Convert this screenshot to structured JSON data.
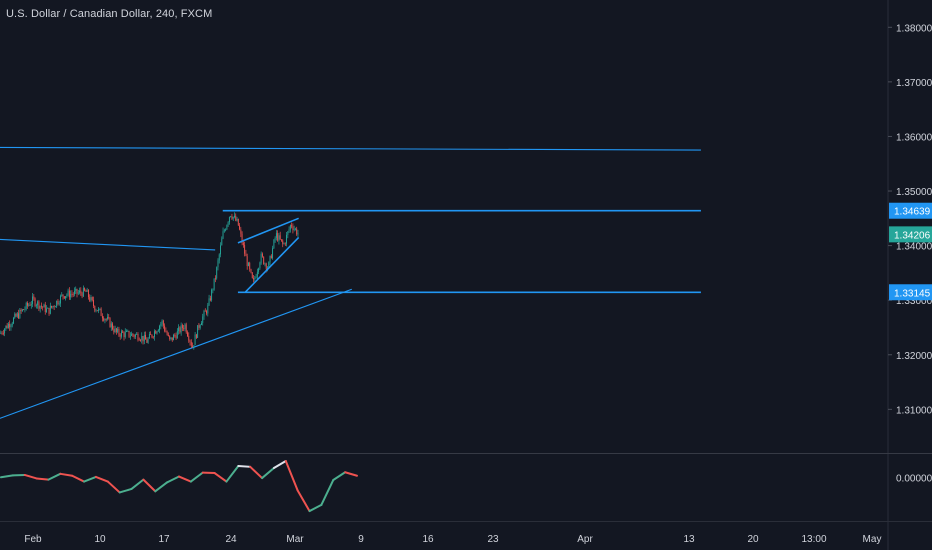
{
  "header": {
    "title": "U.S. Dollar / Canadian Dollar, 240, FXCM"
  },
  "colors": {
    "background": "#131722",
    "grid_line": "#2a2e39",
    "text": "#d1d4dc",
    "bull": "#26a69a",
    "bear": "#ef5350",
    "drawing": "#2196f3",
    "current_badge": "#26a69a",
    "level_badge": "#2196f3"
  },
  "chart_data": [
    {
      "type": "candlestick",
      "title": "U.S. Dollar / Canadian Dollar, 240, FXCM",
      "ylim": [
        1.302,
        1.385
      ],
      "y_ticks": [
        {
          "value": 1.38,
          "label": "1.38000"
        },
        {
          "value": 1.37,
          "label": "1.37000"
        },
        {
          "value": 1.36,
          "label": "1.36000"
        },
        {
          "value": 1.35,
          "label": "1.35000"
        },
        {
          "value": 1.34,
          "label": "1.34000"
        },
        {
          "value": 1.33,
          "label": "1.33000"
        },
        {
          "value": 1.32,
          "label": "1.32000"
        },
        {
          "value": 1.31,
          "label": "1.31000"
        }
      ],
      "x_ticks": [
        "Feb",
        "10",
        "17",
        "24",
        "Mar",
        "9",
        "16",
        "23",
        "Apr",
        "13",
        "20",
        "13:00",
        "May"
      ],
      "price_badges": [
        {
          "value": 1.34639,
          "label": "1.34639",
          "role": "resistance"
        },
        {
          "value": 1.34206,
          "label": "1.34206",
          "role": "current"
        },
        {
          "value": 1.33145,
          "label": "1.33145",
          "role": "support"
        }
      ],
      "close_path": [
        {
          "date": "2020-01-27",
          "close": 1.319
        },
        {
          "date": "2020-01-30",
          "close": 1.3245
        },
        {
          "date": "2020-02-03",
          "close": 1.33
        },
        {
          "date": "2020-02-05",
          "close": 1.328
        },
        {
          "date": "2020-02-07",
          "close": 1.331
        },
        {
          "date": "2020-02-10",
          "close": 1.3315
        },
        {
          "date": "2020-02-11",
          "close": 1.329
        },
        {
          "date": "2020-02-13",
          "close": 1.326
        },
        {
          "date": "2020-02-14",
          "close": 1.324
        },
        {
          "date": "2020-02-17",
          "close": 1.3235
        },
        {
          "date": "2020-02-18",
          "close": 1.3225
        },
        {
          "date": "2020-02-20",
          "close": 1.326
        },
        {
          "date": "2020-02-21",
          "close": 1.3225
        },
        {
          "date": "2020-02-23",
          "close": 1.3255
        },
        {
          "date": "2020-02-24",
          "close": 1.3215
        },
        {
          "date": "2020-02-25",
          "close": 1.326
        },
        {
          "date": "2020-02-26",
          "close": 1.3285
        },
        {
          "date": "2020-02-27",
          "close": 1.334
        },
        {
          "date": "2020-02-28",
          "close": 1.342
        },
        {
          "date": "2020-02-29",
          "close": 1.346
        },
        {
          "date": "2020-03-01",
          "close": 1.344
        },
        {
          "date": "2020-03-02",
          "close": 1.338
        },
        {
          "date": "2020-03-03",
          "close": 1.333
        },
        {
          "date": "2020-03-04",
          "close": 1.338
        },
        {
          "date": "2020-03-05",
          "close": 1.336
        },
        {
          "date": "2020-03-06",
          "close": 1.342
        },
        {
          "date": "2020-03-07",
          "close": 1.34
        },
        {
          "date": "2020-03-08",
          "close": 1.344
        },
        {
          "date": "2020-03-09",
          "close": 1.3421
        }
      ],
      "drawings": [
        {
          "name": "long-descending-line",
          "points": [
            {
              "date": "2020-01-27",
              "price": 1.358
            },
            {
              "date": "2020-05-01",
              "price": 1.3575
            }
          ]
        },
        {
          "name": "short-descending-line",
          "points": [
            {
              "date": "2020-01-27",
              "price": 1.3413
            },
            {
              "date": "2020-02-27",
              "price": 1.3392
            }
          ]
        },
        {
          "name": "rising-trendline",
          "points": [
            {
              "date": "2020-01-27",
              "price": 1.307
            },
            {
              "date": "2020-03-16",
              "price": 1.332
            }
          ]
        },
        {
          "name": "resistance-level",
          "points": [
            {
              "date": "2020-02-28",
              "price": 1.34639
            },
            {
              "date": "2020-05-01",
              "price": 1.34639
            }
          ]
        },
        {
          "name": "support-level",
          "points": [
            {
              "date": "2020-03-01",
              "price": 1.33145
            },
            {
              "date": "2020-05-01",
              "price": 1.33145
            }
          ]
        },
        {
          "name": "wedge-upper-line",
          "points": [
            {
              "date": "2020-03-01",
              "price": 1.3405
            },
            {
              "date": "2020-03-09",
              "price": 1.345
            }
          ]
        },
        {
          "name": "wedge-lower-line",
          "points": [
            {
              "date": "2020-03-02",
              "price": 1.3315
            },
            {
              "date": "2020-03-09",
              "price": 1.3415
            }
          ]
        }
      ]
    },
    {
      "type": "line",
      "name": "oscillator",
      "ylim": [
        -0.011,
        0.006
      ],
      "y_ticks": [
        {
          "value": 0.0,
          "label": "0.00000"
        }
      ],
      "values": [
        0.0,
        0.0005,
        0.0006,
        -0.0003,
        -0.0006,
        0.0009,
        0.0004,
        -0.0011,
        0.0001,
        -0.0011,
        -0.0039,
        -0.003,
        -0.0006,
        -0.0036,
        -0.0013,
        0.0002,
        -0.0011,
        0.0012,
        0.0011,
        -0.0011,
        0.0029,
        0.0027,
        -0.0002,
        0.0024,
        0.0042,
        -0.0034,
        -0.0087,
        -0.0071,
        -0.0007,
        0.0013,
        0.0004
      ]
    }
  ]
}
